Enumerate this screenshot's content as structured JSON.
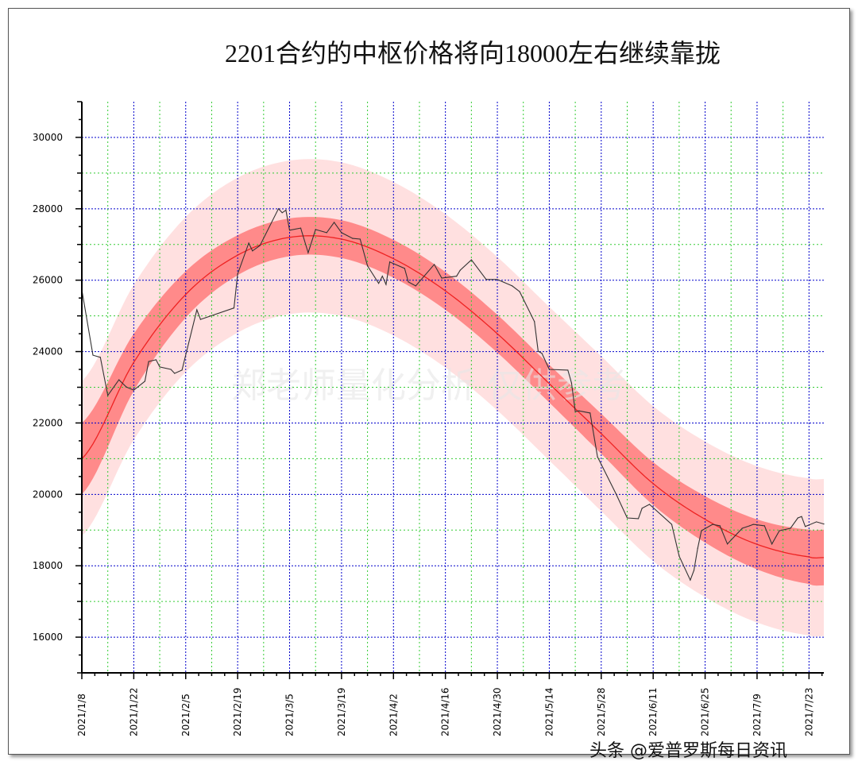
{
  "chart_data": {
    "type": "line",
    "title": "2201合约的中枢价格将向18000左右继续靠拢",
    "xlabel": "",
    "ylabel": "",
    "ylim": [
      15000,
      31000
    ],
    "xlim": [
      "2021/1/8",
      "2021/7/27"
    ],
    "yticks": [
      "16000",
      "18000",
      "20000",
      "22000",
      "24000",
      "26000",
      "28000",
      "30000"
    ],
    "xticks": [
      "2021/1/8",
      "2021/1/22",
      "2021/2/5",
      "2021/2/19",
      "2021/3/5",
      "2021/3/19",
      "2021/4/2",
      "2021/4/16",
      "2021/4/30",
      "2021/5/14",
      "2021/5/28",
      "2021/6/11",
      "2021/6/25",
      "2021/7/9",
      "2021/7/23"
    ],
    "grid": true,
    "colors": {
      "price": "#333333",
      "center": "#ee2222",
      "inner_band": "#ff8a8a",
      "outer_band": "#ffe0e0",
      "major_grid": "#0000cc",
      "minor_grid": "#33cc33"
    },
    "center_band": {
      "dates": [
        "2021/1/8",
        "2021/1/22",
        "2021/2/5",
        "2021/2/19",
        "2021/3/5",
        "2021/3/19",
        "2021/4/2",
        "2021/4/16",
        "2021/4/30",
        "2021/5/14",
        "2021/5/28",
        "2021/6/11",
        "2021/6/25",
        "2021/7/9",
        "2021/7/23",
        "2021/7/27"
      ],
      "center": [
        21000,
        23700,
        25600,
        26700,
        27200,
        27150,
        26600,
        25700,
        24500,
        23100,
        21700,
        20300,
        19300,
        18600,
        18250,
        18230
      ],
      "inner_half_width": [
        1000,
        800,
        650,
        560,
        530,
        530,
        530,
        530,
        530,
        530,
        560,
        600,
        650,
        700,
        760,
        780
      ],
      "outer_half_width": [
        2170,
        2170,
        2170,
        2170,
        2150,
        2150,
        2150,
        2150,
        2150,
        2150,
        2170,
        2170,
        2180,
        2190,
        2200,
        2200
      ]
    },
    "series": [
      {
        "dates": [
          "2021/1/8",
          "2021/1/11",
          "2021/1/13",
          "2021/1/15",
          "2021/1/18",
          "2021/1/20",
          "2021/1/22",
          "2021/1/25",
          "2021/1/26",
          "2021/1/28",
          "2021/1/29",
          "2021/2/1",
          "2021/2/2",
          "2021/2/4",
          "2021/2/8",
          "2021/2/9",
          "2021/2/18",
          "2021/2/19",
          "2021/2/22",
          "2021/2/23",
          "2021/2/25",
          "2021/3/2",
          "2021/3/3",
          "2021/3/4",
          "2021/3/5",
          "2021/3/8",
          "2021/3/10",
          "2021/3/12",
          "2021/3/15",
          "2021/3/17",
          "2021/3/19",
          "2021/3/22",
          "2021/3/24",
          "2021/3/26",
          "2021/3/29",
          "2021/3/30",
          "2021/3/31",
          "2021/4/1",
          "2021/4/5",
          "2021/4/6",
          "2021/4/8",
          "2021/4/13",
          "2021/4/15",
          "2021/4/19",
          "2021/4/20",
          "2021/4/23",
          "2021/4/27",
          "2021/4/30",
          "2021/5/4",
          "2021/5/6",
          "2021/5/10",
          "2021/5/11",
          "2021/5/12",
          "2021/5/14",
          "2021/5/19",
          "2021/5/20",
          "2021/5/21",
          "2021/5/22",
          "2021/5/25",
          "2021/5/27",
          "2021/6/1",
          "2021/6/4",
          "2021/6/7",
          "2021/6/8",
          "2021/6/10",
          "2021/6/16",
          "2021/6/18",
          "2021/6/21",
          "2021/6/22",
          "2021/6/23",
          "2021/6/24",
          "2021/6/27",
          "2021/6/29",
          "2021/7/1",
          "2021/7/5",
          "2021/7/7",
          "2021/7/8",
          "2021/7/11",
          "2021/7/13",
          "2021/7/15",
          "2021/7/18",
          "2021/7/20",
          "2021/7/21",
          "2021/7/22",
          "2021/7/25",
          "2021/7/27"
        ],
        "values": [
          25730,
          23900,
          23840,
          22770,
          23210,
          23010,
          22920,
          23170,
          23720,
          23770,
          23570,
          23500,
          23390,
          23480,
          25170,
          24900,
          25220,
          26170,
          27040,
          26820,
          26970,
          28000,
          27890,
          27960,
          27400,
          27460,
          26770,
          27420,
          27330,
          27620,
          27330,
          27170,
          27150,
          26400,
          25910,
          26110,
          25880,
          26510,
          26330,
          25950,
          25840,
          26440,
          26060,
          26110,
          26280,
          26570,
          26020,
          26020,
          25840,
          25680,
          24840,
          24010,
          23950,
          23500,
          23480,
          23120,
          22320,
          22340,
          22280,
          21050,
          20010,
          19340,
          19320,
          19610,
          19720,
          19160,
          18270,
          17600,
          17870,
          18490,
          18980,
          19160,
          19120,
          18610,
          19050,
          19120,
          19160,
          19120,
          18610,
          18980,
          19050,
          19340,
          19380,
          19100,
          19230,
          19170
        ]
      }
    ]
  },
  "watermark": "郑老师量化分析    仅供参考",
  "credit": "头条 @爱普罗斯每日资讯"
}
